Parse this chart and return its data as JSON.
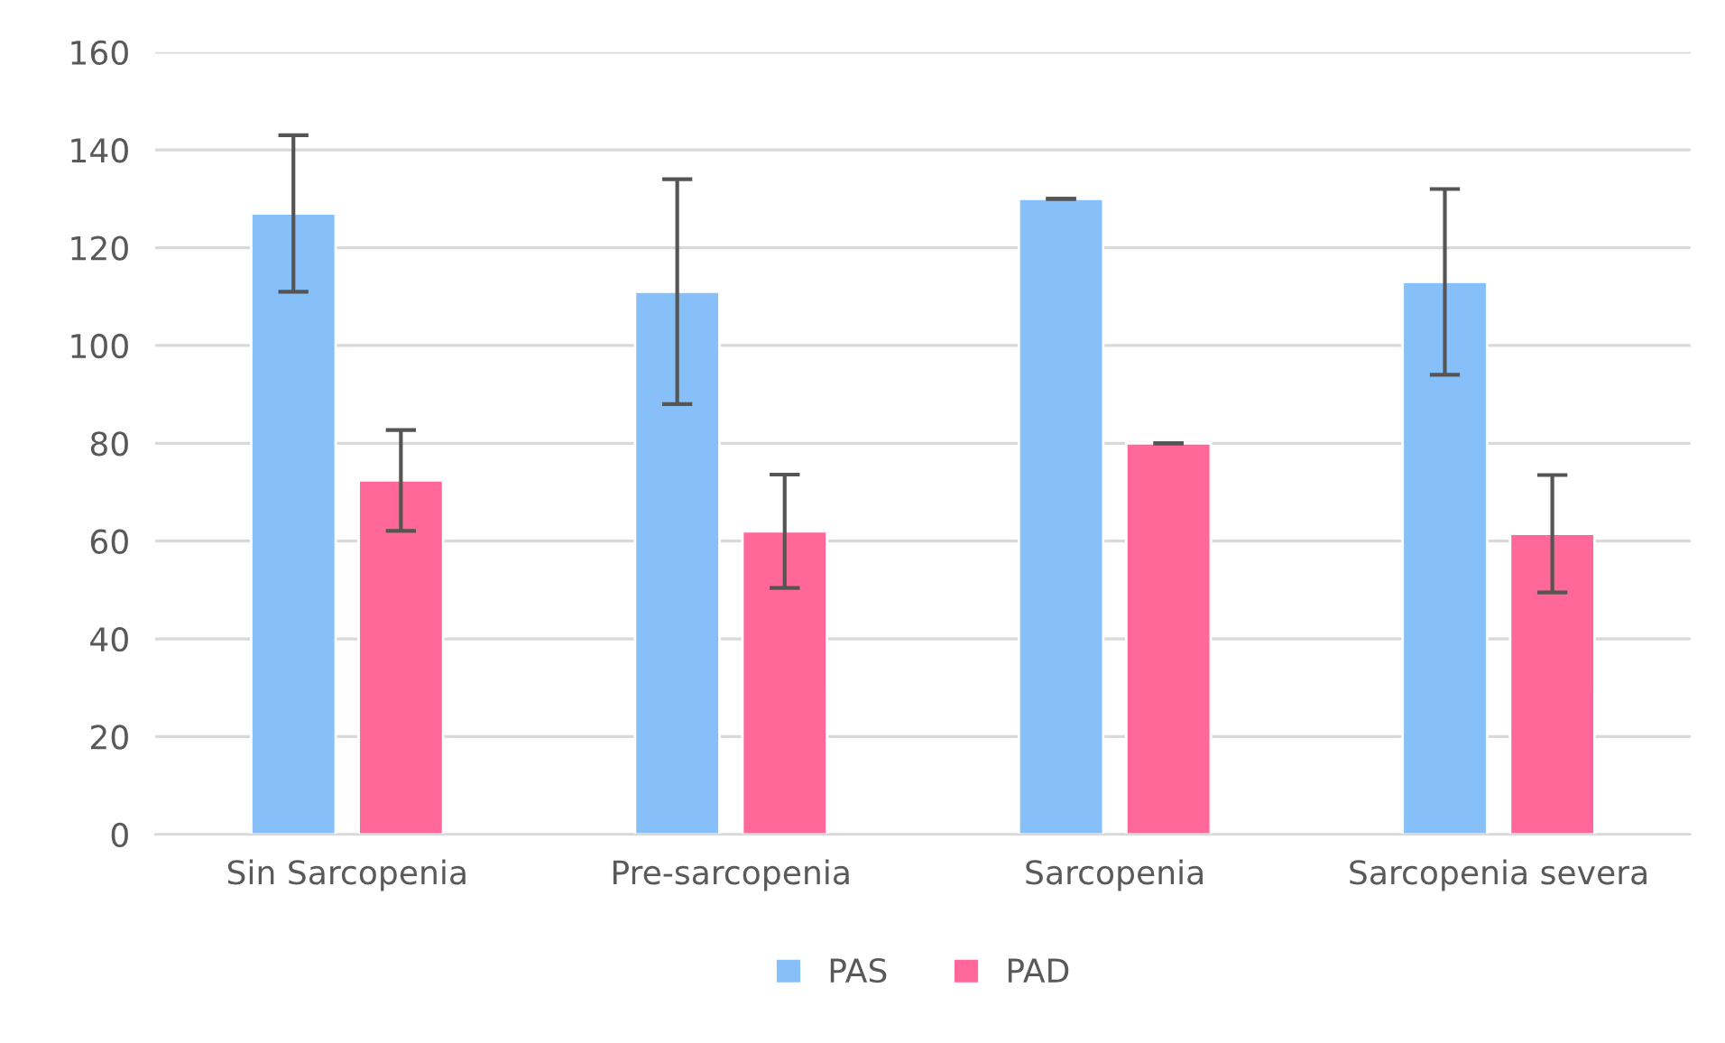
{
  "chart_data": {
    "type": "bar",
    "categories": [
      "Sin Sarcopenia",
      "Pre-sarcopenia",
      "Sarcopenia",
      "Sarcopenia severa"
    ],
    "series": [
      {
        "name": "PAS",
        "color": "#87c0f8",
        "values": [
          127,
          111,
          130,
          113
        ],
        "errors": [
          16,
          23,
          0,
          19
        ]
      },
      {
        "name": "PAD",
        "color": "#ff6898",
        "values": [
          72.4,
          62,
          80,
          61.5
        ],
        "errors": [
          10.3,
          11.6,
          0,
          12
        ]
      }
    ],
    "ylim": [
      0,
      160
    ],
    "yticks": [
      0,
      20,
      40,
      60,
      80,
      100,
      120,
      140,
      160
    ],
    "grid": "y",
    "legend": "bottom"
  }
}
